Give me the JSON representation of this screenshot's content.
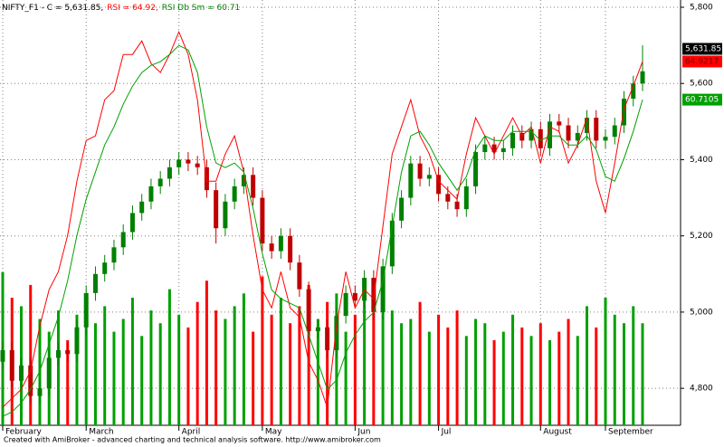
{
  "chart_data": {
    "type": "candlestick",
    "title": [
      "NIFTY_F1 - C = 5,631.85,",
      "RSI = 64.92,",
      "RSI Db Sm = 60.71"
    ],
    "title_colors": [
      "#000000",
      "#ff0000",
      "#008000"
    ],
    "footer": "Created with AmiBroker - advanced charting and technical analysis software. http://www.amibroker.com",
    "categories": [
      "February",
      null,
      null,
      null,
      null,
      null,
      null,
      null,
      null,
      "March",
      null,
      null,
      null,
      null,
      null,
      null,
      null,
      null,
      null,
      "April",
      null,
      null,
      null,
      null,
      null,
      null,
      null,
      null,
      "May",
      null,
      null,
      null,
      null,
      null,
      null,
      null,
      null,
      null,
      "Jun",
      null,
      null,
      null,
      null,
      null,
      null,
      null,
      null,
      "Jul",
      null,
      null,
      null,
      null,
      null,
      null,
      null,
      null,
      null,
      null,
      "August",
      null,
      null,
      null,
      null,
      null,
      null,
      "September",
      null,
      null,
      null,
      null
    ],
    "open": [
      4870,
      4900,
      4820,
      4860,
      4780,
      4800,
      4880,
      4900,
      4890,
      4960,
      5050,
      5100,
      5130,
      5170,
      5210,
      5260,
      5290,
      5330,
      5350,
      5380,
      5400,
      5390,
      5380,
      5320,
      5220,
      5290,
      5330,
      5360,
      5300,
      5180,
      5160,
      5200,
      5130,
      5060,
      4950,
      4960,
      4900,
      4990,
      5050,
      5030,
      5090,
      5000,
      5120,
      5240,
      5300,
      5390,
      5350,
      5360,
      5310,
      5290,
      5270,
      5330,
      5420,
      5440,
      5420,
      5430,
      5470,
      5450,
      5480,
      5430,
      5500,
      5490,
      5450,
      5470,
      5510,
      5450,
      5460,
      5490,
      5560,
      5600
    ],
    "high": [
      4920,
      4920,
      4880,
      4880,
      4820,
      4900,
      4920,
      4920,
      4980,
      5070,
      5120,
      5150,
      5190,
      5230,
      5280,
      5310,
      5350,
      5370,
      5400,
      5420,
      5420,
      5410,
      5400,
      5340,
      5310,
      5350,
      5380,
      5380,
      5320,
      5200,
      5220,
      5220,
      5150,
      5080,
      4980,
      4980,
      5010,
      5070,
      5070,
      5110,
      5110,
      5140,
      5260,
      5320,
      5410,
      5410,
      5380,
      5380,
      5330,
      5310,
      5350,
      5440,
      5460,
      5460,
      5450,
      5490,
      5490,
      5500,
      5500,
      5520,
      5520,
      5510,
      5490,
      5530,
      5530,
      5480,
      5510,
      5580,
      5620,
      5700
    ],
    "low": [
      4850,
      4800,
      4800,
      4760,
      4760,
      4780,
      4860,
      4870,
      4870,
      4940,
      5030,
      5080,
      5110,
      5150,
      5190,
      5240,
      5270,
      5310,
      5330,
      5360,
      5370,
      5360,
      5300,
      5180,
      5200,
      5270,
      5310,
      5280,
      5160,
      5140,
      5140,
      5110,
      5040,
      4930,
      4930,
      4880,
      4880,
      4970,
      5010,
      5010,
      4980,
      4980,
      5100,
      5220,
      5280,
      5330,
      5330,
      5290,
      5270,
      5250,
      5250,
      5310,
      5400,
      5400,
      5400,
      5410,
      5430,
      5430,
      5410,
      5410,
      5470,
      5430,
      5430,
      5450,
      5430,
      5430,
      5440,
      5470,
      5540,
      5580
    ],
    "close": [
      4900,
      4820,
      4860,
      4780,
      4800,
      4880,
      4900,
      4890,
      4960,
      5050,
      5100,
      5130,
      5170,
      5210,
      5260,
      5290,
      5330,
      5350,
      5380,
      5400,
      5390,
      5380,
      5320,
      5220,
      5290,
      5330,
      5360,
      5300,
      5180,
      5160,
      5200,
      5130,
      5060,
      4950,
      4960,
      4900,
      4990,
      5050,
      5030,
      5090,
      5000,
      5120,
      5240,
      5300,
      5390,
      5350,
      5360,
      5310,
      5290,
      5270,
      5330,
      5420,
      5440,
      5420,
      5430,
      5470,
      5450,
      5480,
      5430,
      5500,
      5490,
      5450,
      5470,
      5510,
      5450,
      5460,
      5490,
      5560,
      5600,
      5631.85
    ],
    "close_value_labels": [
      null,
      null,
      null,
      null,
      null,
      null,
      null,
      null,
      null,
      null,
      null,
      null,
      null,
      null,
      null,
      null,
      null,
      null,
      null,
      null,
      null,
      null,
      null,
      null,
      null,
      null,
      null,
      null,
      null,
      null,
      null,
      null,
      null,
      null,
      null,
      null,
      null,
      null,
      null,
      null,
      null,
      null,
      null,
      null,
      null,
      null,
      null,
      null,
      null,
      null,
      null,
      null,
      null,
      null,
      null,
      null,
      null,
      null,
      null,
      null,
      null,
      null,
      null,
      null,
      null,
      null,
      null,
      null,
      null,
      "5,631.85"
    ],
    "up_color": "#008000",
    "down_color": "#c00000",
    "ylim": [
      4703,
      5819
    ],
    "yticks": [
      {
        "value": 4800,
        "label": "4,800"
      },
      {
        "value": 5000,
        "label": "5,000"
      },
      {
        "value": 5200,
        "label": "5,200"
      },
      {
        "value": 5400,
        "label": "5,400"
      },
      {
        "value": 5600,
        "label": "5,600"
      },
      {
        "value": 5800,
        "label": "5,800"
      }
    ],
    "grid": true,
    "volume": [
      36,
      30,
      28,
      33,
      25,
      22,
      27,
      20,
      26,
      30,
      24,
      28,
      22,
      25,
      30,
      21,
      27,
      24,
      32,
      26,
      23,
      29,
      34,
      27,
      25,
      28,
      31,
      22,
      35,
      26,
      30,
      24,
      28,
      33,
      25,
      29,
      31,
      22,
      26,
      30,
      28,
      34,
      27,
      24,
      25,
      29,
      22,
      26,
      23,
      27,
      21,
      25,
      24,
      20,
      22,
      26,
      23,
      21,
      24,
      20,
      22,
      25,
      21,
      28,
      23,
      30,
      26,
      24,
      28,
      24
    ],
    "volume_lim": [
      0,
      100
    ],
    "volume_up_color": "#00a000",
    "volume_down_color": "#ff0000",
    "rsi_lim": [
      24.72,
      71.72
    ],
    "rsi": {
      "color": "#ff0000",
      "values": [
        26.7,
        27.7,
        28.7,
        30.7,
        35.7,
        39.7,
        41.7,
        45.7,
        51.7,
        56.2,
        56.7,
        60.7,
        61.7,
        65.7,
        65.7,
        67.2,
        64.7,
        63.7,
        65.7,
        68.2,
        65.7,
        60.7,
        51.7,
        51.7,
        54.7,
        56.7,
        52.7,
        45.7,
        39.7,
        37.7,
        41.7,
        37.7,
        36.7,
        31.7,
        29.7,
        26.7,
        35.7,
        41.7,
        37.7,
        39.7,
        38.7,
        46.7,
        54.7,
        57.7,
        60.7,
        56.7,
        54.7,
        51.7,
        50.7,
        49.7,
        54.7,
        58.7,
        56.7,
        54.7,
        56.7,
        58.7,
        56.7,
        57.7,
        53.7,
        57.7,
        57.2,
        53.7,
        55.7,
        58.7,
        51.7,
        48.2,
        53.7,
        59.7,
        62.2,
        64.9217
      ],
      "value_labels": [
        null,
        null,
        null,
        null,
        null,
        null,
        null,
        null,
        null,
        null,
        null,
        null,
        null,
        null,
        null,
        null,
        null,
        null,
        null,
        null,
        null,
        null,
        null,
        null,
        null,
        null,
        null,
        null,
        null,
        null,
        null,
        null,
        null,
        null,
        null,
        null,
        null,
        null,
        null,
        null,
        null,
        null,
        null,
        null,
        null,
        null,
        null,
        null,
        null,
        null,
        null,
        null,
        null,
        null,
        null,
        null,
        null,
        null,
        null,
        null,
        null,
        null,
        null,
        null,
        null,
        null,
        null,
        null,
        null,
        "64.9217"
      ]
    },
    "rsi_smooth": {
      "color": "#00a000",
      "values": [
        25.7,
        26.2,
        27.2,
        28.7,
        30.7,
        33.7,
        36.7,
        40.7,
        45.7,
        49.7,
        52.7,
        55.7,
        57.7,
        60.2,
        62.2,
        63.7,
        64.5,
        64.9,
        65.7,
        66.7,
        66.2,
        63.7,
        57.7,
        53.7,
        53.2,
        53.7,
        52.7,
        48.7,
        43.7,
        39.7,
        38.7,
        38.2,
        37.7,
        34.7,
        31.7,
        28.7,
        29.7,
        32.7,
        34.7,
        36.2,
        37.2,
        40.7,
        46.7,
        52.7,
        56.7,
        57.2,
        55.7,
        53.7,
        52.2,
        50.7,
        52.2,
        55.2,
        56.7,
        56.2,
        56.2,
        57.2,
        57.2,
        57.2,
        56.2,
        56.7,
        56.7,
        55.7,
        55.7,
        56.7,
        55.2,
        52.2,
        51.7,
        54.2,
        57.2,
        60.7105
      ],
      "value_labels": [
        null,
        null,
        null,
        null,
        null,
        null,
        null,
        null,
        null,
        null,
        null,
        null,
        null,
        null,
        null,
        null,
        null,
        null,
        null,
        null,
        null,
        null,
        null,
        null,
        null,
        null,
        null,
        null,
        null,
        null,
        null,
        null,
        null,
        null,
        null,
        null,
        null,
        null,
        null,
        null,
        null,
        null,
        null,
        null,
        null,
        null,
        null,
        null,
        null,
        null,
        null,
        null,
        null,
        null,
        null,
        null,
        null,
        null,
        null,
        null,
        null,
        null,
        null,
        null,
        null,
        null,
        null,
        null,
        null,
        "60.7105"
      ]
    },
    "label_box_colors": [
      "#000000",
      "#ff0000",
      "#00a000"
    ]
  }
}
